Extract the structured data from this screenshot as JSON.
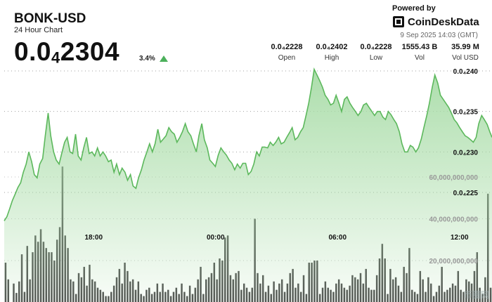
{
  "header": {
    "title": "BONK-USD",
    "subtitle": "24 Hour Chart",
    "price_main": "0.0",
    "price_sub": "4",
    "price_tail": "2304",
    "change": "3.4%"
  },
  "branding": {
    "powered_by": "Powered by",
    "name": "CoinDeskData",
    "timestamp": "9 Sep 2025 14:03 (GMT)"
  },
  "stats": [
    {
      "value": "0.0₄2228",
      "label": "Open"
    },
    {
      "value": "0.0₄2402",
      "label": "High"
    },
    {
      "value": "0.0₄2228",
      "label": "Low"
    },
    {
      "value": "1555.43 B",
      "label": "Vol"
    },
    {
      "value": "35.99 M",
      "label": "Vol USD"
    }
  ],
  "watermark": "币圈网",
  "colors": {
    "accent": "#4cb05b",
    "line": "#5cb85c",
    "fill": "#a8dca7",
    "volume": "#4d4d4d"
  },
  "chart_data": {
    "type": "area",
    "price_axis": {
      "ticks": [
        2.4e-05,
        2.35e-05,
        2.3e-05,
        2.25e-05
      ],
      "tick_labels": [
        "0.0₄240",
        "0.0₄235",
        "0.0₄230",
        "0.0₄225"
      ]
    },
    "volume_axis": {
      "ticks": [
        60000000000,
        40000000000,
        20000000000
      ],
      "tick_labels": [
        "60,000,000,000",
        "40,000,000,000",
        "20,000,000,000"
      ]
    },
    "x_tick_labels": [
      "18:00",
      "00:00",
      "06:00",
      "12:00"
    ],
    "x_tick_positions": [
      4.4,
      10.4,
      16.4,
      22.4
    ],
    "price_series": [
      [
        0,
        2.215e-05
      ],
      [
        0.13,
        2.22e-05
      ],
      [
        0.27,
        2.23e-05
      ],
      [
        0.4,
        2.24e-05
      ],
      [
        0.54,
        2.248e-05
      ],
      [
        0.67,
        2.256e-05
      ],
      [
        0.81,
        2.262e-05
      ],
      [
        0.94,
        2.275e-05
      ],
      [
        1.08,
        2.285e-05
      ],
      [
        1.21,
        2.3e-05
      ],
      [
        1.35,
        2.288e-05
      ],
      [
        1.48,
        2.272e-05
      ],
      [
        1.62,
        2.268e-05
      ],
      [
        1.75,
        2.285e-05
      ],
      [
        1.89,
        2.292e-05
      ],
      [
        2.02,
        2.32e-05
      ],
      [
        2.16,
        2.348e-05
      ],
      [
        2.29,
        2.32e-05
      ],
      [
        2.43,
        2.3e-05
      ],
      [
        2.56,
        2.29e-05
      ],
      [
        2.7,
        2.285e-05
      ],
      [
        2.83,
        2.298e-05
      ],
      [
        2.97,
        2.312e-05
      ],
      [
        3.1,
        2.318e-05
      ],
      [
        3.24,
        2.3e-05
      ],
      [
        3.37,
        2.298e-05
      ],
      [
        3.51,
        2.322e-05
      ],
      [
        3.64,
        2.295e-05
      ],
      [
        3.78,
        2.29e-05
      ],
      [
        3.91,
        2.305e-05
      ],
      [
        4.05,
        2.318e-05
      ],
      [
        4.18,
        2.298e-05
      ],
      [
        4.32,
        2.3e-05
      ],
      [
        4.45,
        2.295e-05
      ],
      [
        4.59,
        2.305e-05
      ],
      [
        4.72,
        2.295e-05
      ],
      [
        4.86,
        2.3e-05
      ],
      [
        4.99,
        2.295e-05
      ],
      [
        5.13,
        2.288e-05
      ],
      [
        5.26,
        2.29e-05
      ],
      [
        5.4,
        2.275e-05
      ],
      [
        5.53,
        2.285e-05
      ],
      [
        5.67,
        2.272e-05
      ],
      [
        5.8,
        2.28e-05
      ],
      [
        5.94,
        2.275e-05
      ],
      [
        6.07,
        2.265e-05
      ],
      [
        6.21,
        2.272e-05
      ],
      [
        6.34,
        2.258e-05
      ],
      [
        6.48,
        2.255e-05
      ],
      [
        6.61,
        2.268e-05
      ],
      [
        6.75,
        2.278e-05
      ],
      [
        6.88,
        2.29e-05
      ],
      [
        7.02,
        2.3e-05
      ],
      [
        7.15,
        2.31e-05
      ],
      [
        7.29,
        2.3e-05
      ],
      [
        7.42,
        2.31e-05
      ],
      [
        7.56,
        2.328e-05
      ],
      [
        7.69,
        2.312e-05
      ],
      [
        7.83,
        2.316e-05
      ],
      [
        7.96,
        2.32e-05
      ],
      [
        8.1,
        2.33e-05
      ],
      [
        8.23,
        2.325e-05
      ],
      [
        8.37,
        2.322e-05
      ],
      [
        8.5,
        2.312e-05
      ],
      [
        8.64,
        2.318e-05
      ],
      [
        8.77,
        2.325e-05
      ],
      [
        8.91,
        2.335e-05
      ],
      [
        9.04,
        2.325e-05
      ],
      [
        9.18,
        2.32e-05
      ],
      [
        9.31,
        2.31e-05
      ],
      [
        9.45,
        2.3e-05
      ],
      [
        9.58,
        2.32e-05
      ],
      [
        9.72,
        2.335e-05
      ],
      [
        9.85,
        2.315e-05
      ],
      [
        9.99,
        2.305e-05
      ],
      [
        10.12,
        2.29e-05
      ],
      [
        10.26,
        2.286e-05
      ],
      [
        10.39,
        2.282e-05
      ],
      [
        10.53,
        2.296e-05
      ],
      [
        10.66,
        2.305e-05
      ],
      [
        10.8,
        2.3e-05
      ],
      [
        10.93,
        2.296e-05
      ],
      [
        11.07,
        2.29e-05
      ],
      [
        11.2,
        2.286e-05
      ],
      [
        11.34,
        2.278e-05
      ],
      [
        11.47,
        2.285e-05
      ],
      [
        11.61,
        2.28e-05
      ],
      [
        11.74,
        2.286e-05
      ],
      [
        11.88,
        2.286e-05
      ],
      [
        12.01,
        2.272e-05
      ],
      [
        12.15,
        2.276e-05
      ],
      [
        12.28,
        2.285e-05
      ],
      [
        12.42,
        2.3e-05
      ],
      [
        12.55,
        2.295e-05
      ],
      [
        12.69,
        2.306e-05
      ],
      [
        12.82,
        2.306e-05
      ],
      [
        12.96,
        2.305e-05
      ],
      [
        13.09,
        2.312e-05
      ],
      [
        13.23,
        2.308e-05
      ],
      [
        13.36,
        2.312e-05
      ],
      [
        13.5,
        2.318e-05
      ],
      [
        13.63,
        2.31e-05
      ],
      [
        13.77,
        2.312e-05
      ],
      [
        13.9,
        2.318e-05
      ],
      [
        14.04,
        2.324e-05
      ],
      [
        14.17,
        2.33e-05
      ],
      [
        14.31,
        2.315e-05
      ],
      [
        14.44,
        2.318e-05
      ],
      [
        14.58,
        2.325e-05
      ],
      [
        14.71,
        2.33e-05
      ],
      [
        14.85,
        2.345e-05
      ],
      [
        14.98,
        2.36e-05
      ],
      [
        15.12,
        2.38e-05
      ],
      [
        15.25,
        2.402e-05
      ],
      [
        15.39,
        2.395e-05
      ],
      [
        15.52,
        2.388e-05
      ],
      [
        15.66,
        2.38e-05
      ],
      [
        15.79,
        2.37e-05
      ],
      [
        15.93,
        2.365e-05
      ],
      [
        16.06,
        2.358e-05
      ],
      [
        16.2,
        2.36e-05
      ],
      [
        16.33,
        2.37e-05
      ],
      [
        16.47,
        2.36e-05
      ],
      [
        16.6,
        2.35e-05
      ],
      [
        16.74,
        2.365e-05
      ],
      [
        16.87,
        2.368e-05
      ],
      [
        17.01,
        2.36e-05
      ],
      [
        17.14,
        2.355e-05
      ],
      [
        17.28,
        2.35e-05
      ],
      [
        17.41,
        2.345e-05
      ],
      [
        17.55,
        2.35e-05
      ],
      [
        17.68,
        2.358e-05
      ],
      [
        17.82,
        2.36e-05
      ],
      [
        17.95,
        2.355e-05
      ],
      [
        18.09,
        2.35e-05
      ],
      [
        18.22,
        2.345e-05
      ],
      [
        18.36,
        2.35e-05
      ],
      [
        18.49,
        2.35e-05
      ],
      [
        18.63,
        2.343e-05
      ],
      [
        18.76,
        2.34e-05
      ],
      [
        18.9,
        2.35e-05
      ],
      [
        19.03,
        2.346e-05
      ],
      [
        19.17,
        2.34e-05
      ],
      [
        19.3,
        2.335e-05
      ],
      [
        19.44,
        2.325e-05
      ],
      [
        19.57,
        2.31e-05
      ],
      [
        19.71,
        2.3e-05
      ],
      [
        19.84,
        2.3e-05
      ],
      [
        19.98,
        2.308e-05
      ],
      [
        20.11,
        2.306e-05
      ],
      [
        20.25,
        2.3e-05
      ],
      [
        20.38,
        2.305e-05
      ],
      [
        20.52,
        2.316e-05
      ],
      [
        20.65,
        2.33e-05
      ],
      [
        20.79,
        2.345e-05
      ],
      [
        20.92,
        2.36e-05
      ],
      [
        21.06,
        2.38e-05
      ],
      [
        21.19,
        2.395e-05
      ],
      [
        21.33,
        2.385e-05
      ],
      [
        21.46,
        2.37e-05
      ],
      [
        21.6,
        2.365e-05
      ],
      [
        21.73,
        2.36e-05
      ],
      [
        21.87,
        2.355e-05
      ],
      [
        22.0,
        2.348e-05
      ],
      [
        22.14,
        2.34e-05
      ],
      [
        22.27,
        2.336e-05
      ],
      [
        22.41,
        2.33e-05
      ],
      [
        22.54,
        2.325e-05
      ],
      [
        22.68,
        2.32e-05
      ],
      [
        22.81,
        2.318e-05
      ],
      [
        22.95,
        2.315e-05
      ],
      [
        23.08,
        2.312e-05
      ],
      [
        23.22,
        2.318e-05
      ],
      [
        23.35,
        2.335e-05
      ],
      [
        23.49,
        2.345e-05
      ],
      [
        23.62,
        2.34e-05
      ],
      [
        23.76,
        2.334e-05
      ],
      [
        23.89,
        2.325e-05
      ],
      [
        24.0,
        2.318e-05
      ]
    ],
    "volume_series": [
      19000000000,
      11000000000,
      0,
      9000000000,
      4500000000,
      10000000000,
      23000000000,
      5000000000,
      27000000000,
      11000000000,
      24000000000,
      32000000000,
      29000000000,
      35000000000,
      29000000000,
      26000000000,
      24000000000,
      24000000000,
      20000000000,
      30000000000,
      36000000000,
      65000000000,
      32000000000,
      26000000000,
      11000000000,
      10000000000,
      4000000000,
      14000000000,
      12000000000,
      17000000000,
      8000000000,
      18000000000,
      11000000000,
      10000000000,
      7000000000,
      6000000000,
      5000000000,
      3000000000,
      3000000000,
      5000000000,
      8000000000,
      12000000000,
      16000000000,
      9000000000,
      19000000000,
      15000000000,
      10000000000,
      11000000000,
      6000000000,
      10000000000,
      4000000000,
      3000000000,
      6000000000,
      7000000000,
      4000000000,
      5000000000,
      9000000000,
      5000000000,
      9000000000,
      5000000000,
      6000000000,
      3000000000,
      5000000000,
      7000000000,
      4000000000,
      9000000000,
      5000000000,
      3000000000,
      8000000000,
      4000000000,
      7000000000,
      11000000000,
      17000000000,
      4000000000,
      11000000000,
      12000000000,
      14000000000,
      19000000000,
      11000000000,
      21000000000,
      20000000000,
      31000000000,
      32000000000,
      13000000000,
      11000000000,
      14000000000,
      15000000000,
      6000000000,
      9000000000,
      7000000000,
      5000000000,
      7000000000,
      40000000000,
      14000000000,
      9000000000,
      13000000000,
      5000000000,
      8000000000,
      4000000000,
      10000000000,
      6000000000,
      9000000000,
      11000000000,
      5000000000,
      9000000000,
      14000000000,
      16000000000,
      7000000000,
      9000000000,
      5000000000,
      13000000000,
      4000000000,
      19000000000,
      19000000000,
      20000000000,
      20000000000,
      4000000000,
      7000000000,
      10000000000,
      7000000000,
      6000000000,
      5000000000,
      9000000000,
      11000000000,
      9000000000,
      7000000000,
      6000000000,
      8000000000,
      13000000000,
      12000000000,
      11000000000,
      14000000000,
      9000000000,
      16000000000,
      7000000000,
      6000000000,
      6000000000,
      13000000000,
      21000000000,
      28000000000,
      21000000000,
      4000000000,
      16000000000,
      11000000000,
      12000000000,
      8000000000,
      5000000000,
      17000000000,
      14000000000,
      26000000000,
      6000000000,
      5000000000,
      4000000000,
      15000000000,
      11000000000,
      5000000000,
      12000000000,
      9000000000,
      3000000000,
      5000000000,
      8000000000,
      17000000000,
      5000000000,
      6000000000,
      7000000000,
      9000000000,
      8000000000,
      15000000000,
      6000000000,
      5000000000,
      11000000000,
      10000000000,
      9000000000,
      15000000000,
      24000000000,
      7000000000,
      4000000000,
      12000000000,
      52000000000,
      7000000000
    ],
    "grid": true
  }
}
